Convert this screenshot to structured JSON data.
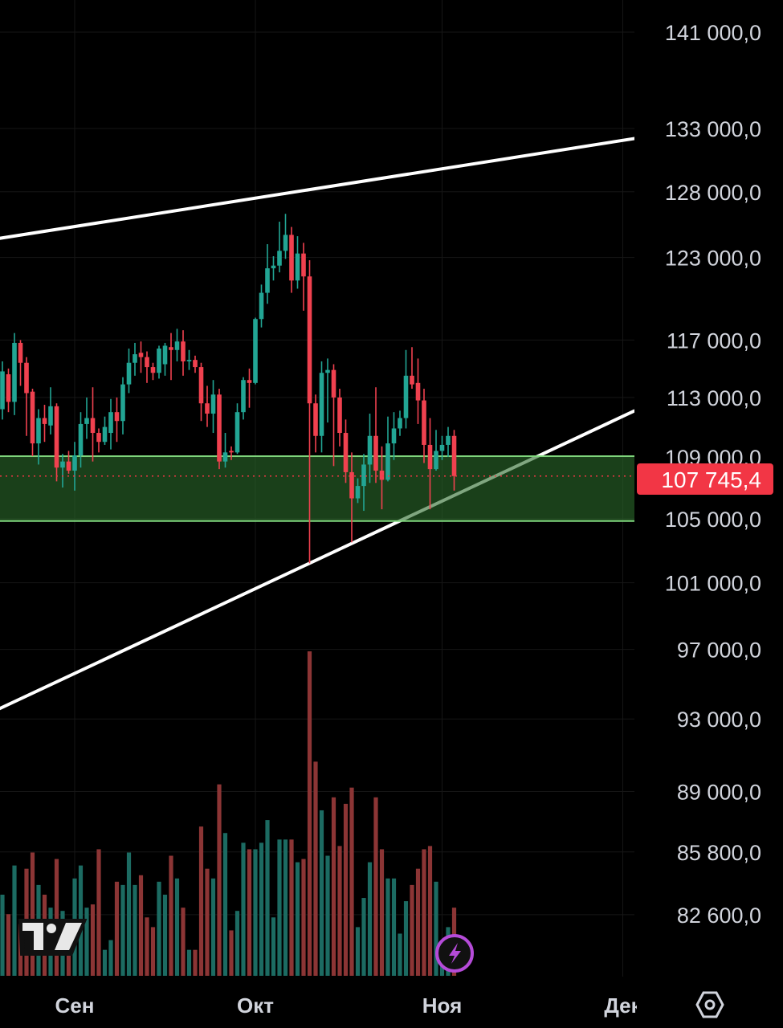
{
  "chart_data": {
    "type": "candlestick",
    "y_scale": "log",
    "ylim": [
      80500,
      144000
    ],
    "y_ticks": [
      "141 000,0",
      "133 000,0",
      "128 000,0",
      "123 000,0",
      "117 000,0",
      "113 000,0",
      "109 000,0",
      "105 000,0",
      "101 000,0",
      "97 000,0",
      "93 000,0",
      "89 000,0",
      "85 800,0",
      "82 600,0"
    ],
    "y_tick_values": [
      141000,
      133000,
      128000,
      123000,
      117000,
      113000,
      109000,
      105000,
      101000,
      97000,
      93000,
      89000,
      85800,
      82600
    ],
    "x_ticks": [
      {
        "label": "Сен",
        "date": "01.09"
      },
      {
        "label": "Окт",
        "date": "01.10"
      },
      {
        "label": "Ноя",
        "date": "01.11"
      },
      {
        "label": "Дек",
        "date": "01.12"
      }
    ],
    "grid": true,
    "columns": [
      "date",
      "open",
      "high",
      "low",
      "close"
    ],
    "candles": [
      [
        "20.08",
        112200,
        115500,
        111500,
        114800
      ],
      [
        "21.08",
        114600,
        115000,
        112000,
        112700
      ],
      [
        "22.08",
        112700,
        117500,
        111800,
        116800
      ],
      [
        "23.08",
        116800,
        117000,
        113800,
        115400
      ],
      [
        "24.08",
        115400,
        115800,
        110400,
        113300
      ],
      [
        "25.08",
        113400,
        113600,
        109050,
        109900
      ],
      [
        "26.08",
        109900,
        112200,
        108500,
        111600
      ],
      [
        "27.08",
        111600,
        112500,
        110000,
        111200
      ],
      [
        "28.08",
        111100,
        113700,
        110500,
        112400
      ],
      [
        "29.08",
        112400,
        112600,
        107400,
        108300
      ],
      [
        "30.08",
        108300,
        109200,
        107000,
        108700
      ],
      [
        "31.08",
        108700,
        109400,
        107900,
        108100
      ],
      [
        "01.09",
        108100,
        110000,
        106800,
        109100
      ],
      [
        "02.09",
        109100,
        112000,
        108300,
        111200
      ],
      [
        "03.09",
        111200,
        113000,
        110200,
        111600
      ],
      [
        "04.09",
        111600,
        113700,
        108700,
        110600
      ],
      [
        "05.09",
        110600,
        110900,
        109300,
        110000
      ],
      [
        "06.09",
        110000,
        111700,
        109800,
        111000
      ],
      [
        "07.09",
        110600,
        112900,
        109500,
        112000
      ],
      [
        "08.09",
        112000,
        113000,
        110000,
        111400
      ],
      [
        "09.09",
        111400,
        114400,
        110500,
        113900
      ],
      [
        "10.09",
        113900,
        116400,
        113300,
        115400
      ],
      [
        "11.09",
        115400,
        116800,
        114500,
        116000
      ],
      [
        "12.09",
        116100,
        116900,
        114700,
        115800
      ],
      [
        "13.09",
        115800,
        116200,
        114000,
        115100
      ],
      [
        "14.09",
        115100,
        115400,
        114200,
        114700
      ],
      [
        "15.09",
        114700,
        116600,
        114300,
        116400
      ],
      [
        "16.09",
        115300,
        116800,
        114500,
        116600
      ],
      [
        "17.09",
        116500,
        117500,
        114200,
        116300
      ],
      [
        "18.09",
        116300,
        117800,
        115500,
        116900
      ],
      [
        "19.09",
        116900,
        117700,
        114500,
        115500
      ],
      [
        "20.09",
        115500,
        116300,
        114900,
        115600
      ],
      [
        "21.09",
        115600,
        115900,
        114700,
        115100
      ],
      [
        "22.09",
        115100,
        115400,
        111400,
        112600
      ],
      [
        "23.09",
        112600,
        113800,
        111000,
        111900
      ],
      [
        "24.09",
        111900,
        114200,
        110600,
        113200
      ],
      [
        "25.09",
        113200,
        113600,
        108200,
        108700
      ],
      [
        "26.09",
        108700,
        110600,
        108300,
        109300
      ],
      [
        "27.09",
        109400,
        109700,
        108800,
        109300
      ],
      [
        "28.09",
        109300,
        112600,
        109200,
        112000
      ],
      [
        "29.09",
        112000,
        114400,
        111500,
        114200
      ],
      [
        "30.09",
        114200,
        115000,
        112300,
        114000
      ],
      [
        "01.10",
        114000,
        118600,
        113900,
        118500
      ],
      [
        "02.10",
        118500,
        121000,
        117900,
        120400
      ],
      [
        "03.10",
        120400,
        124000,
        119600,
        122200
      ],
      [
        "04.10",
        122200,
        123100,
        121300,
        122400
      ],
      [
        "05.10",
        122400,
        125700,
        121900,
        123500
      ],
      [
        "06.10",
        123500,
        126300,
        122900,
        124700
      ],
      [
        "07.10",
        124700,
        125300,
        120400,
        121300
      ],
      [
        "08.10",
        121300,
        124600,
        120700,
        123300
      ],
      [
        "09.10",
        123300,
        124100,
        119100,
        121600
      ],
      [
        "10.10",
        121600,
        122800,
        102200,
        112600
      ],
      [
        "11.10",
        112600,
        113200,
        109300,
        110400
      ],
      [
        "12.10",
        110400,
        115500,
        109300,
        114700
      ],
      [
        "13.10",
        114700,
        115700,
        111300,
        114900
      ],
      [
        "14.10",
        114900,
        115300,
        108400,
        113000
      ],
      [
        "15.10",
        113000,
        113600,
        109700,
        110600
      ],
      [
        "16.10",
        110600,
        111500,
        107300,
        108000
      ],
      [
        "17.10",
        108000,
        109300,
        103500,
        106300
      ],
      [
        "18.10",
        106300,
        107600,
        106000,
        107100
      ],
      [
        "19.10",
        107100,
        109200,
        105500,
        108500
      ],
      [
        "20.10",
        108500,
        111900,
        107300,
        110400
      ],
      [
        "21.10",
        110400,
        113700,
        107300,
        108100
      ],
      [
        "22.10",
        108100,
        109700,
        105600,
        107500
      ],
      [
        "23.10",
        107500,
        111700,
        107400,
        109900
      ],
      [
        "24.10",
        109900,
        112000,
        108800,
        110900
      ],
      [
        "25.10",
        110900,
        112100,
        110400,
        111600
      ],
      [
        "26.10",
        111600,
        116300,
        110900,
        114500
      ],
      [
        "27.10",
        114500,
        116500,
        113600,
        113900
      ],
      [
        "28.10",
        114000,
        115700,
        111200,
        112800
      ],
      [
        "29.10",
        112800,
        113600,
        108600,
        109800
      ],
      [
        "30.10",
        109800,
        111600,
        105600,
        108200
      ],
      [
        "31.10",
        108200,
        110800,
        108100,
        109400
      ],
      [
        "01.11",
        109400,
        110400,
        108800,
        109800
      ],
      [
        "02.11",
        109800,
        111000,
        109000,
        110400
      ],
      [
        "03.11",
        110400,
        110800,
        106800,
        107745.4
      ]
    ],
    "volume_relative": [
      25,
      19,
      34,
      16,
      33,
      38,
      28,
      25,
      21,
      36,
      20,
      15,
      30,
      34,
      21,
      22,
      39,
      8,
      11,
      29,
      28,
      38,
      28,
      31,
      18,
      15,
      29,
      25,
      37,
      30,
      21,
      8,
      8,
      46,
      33,
      30,
      59,
      44,
      14,
      20,
      41,
      39,
      39,
      41,
      48,
      18,
      42,
      42,
      42,
      35,
      36,
      100,
      66,
      51,
      37,
      55,
      40,
      53,
      58,
      15,
      24,
      35,
      55,
      39,
      30,
      30,
      13,
      23,
      28,
      33,
      39,
      40,
      29,
      10,
      15,
      21
    ],
    "trendlines": [
      {
        "from": [
          "19.08",
          124400
        ],
        "to": [
          "03.12",
          132200
        ]
      },
      {
        "from": [
          "19.08",
          93500
        ],
        "to": [
          "03.12",
          112100
        ]
      }
    ],
    "zone": {
      "low": 104850,
      "high": 109050
    },
    "last_price": 107745.4,
    "last_price_label": "107 745,4",
    "colors": {
      "up": "#22a594",
      "down": "#f0414f",
      "volume_up": "#1c6b62",
      "volume_down": "#8c3535",
      "zone_fill": "#2b6a2c",
      "zone_border": "#7fd67c",
      "trendline": "#ffffff",
      "last_price": "#f23645",
      "lightning": "#b54bd8"
    }
  },
  "ui": {
    "logo": "TV",
    "icons": [
      "tradingview-logo-icon",
      "lightning-icon",
      "settings-hexagon-icon"
    ]
  }
}
